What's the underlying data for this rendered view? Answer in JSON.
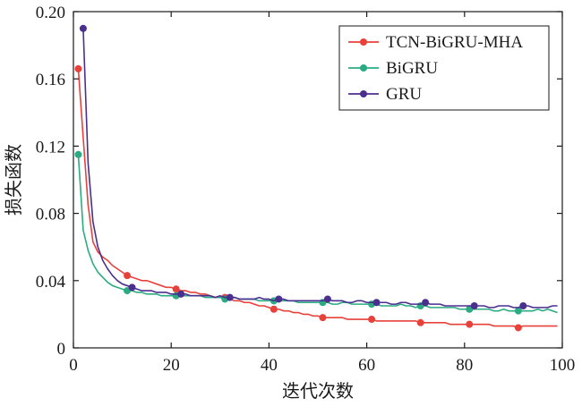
{
  "chart_data": {
    "type": "line",
    "xlabel": "迭代次数",
    "ylabel": "损失函数",
    "xlim": [
      0,
      100
    ],
    "ylim": [
      0,
      0.2
    ],
    "x_ticks": [
      0,
      20,
      40,
      60,
      80,
      100
    ],
    "x_tick_labels": [
      "0",
      "20",
      "40",
      "60",
      "80",
      "100"
    ],
    "y_ticks": [
      0,
      0.04,
      0.08,
      0.12,
      0.16,
      0.2
    ],
    "y_tick_labels": [
      "0",
      "0.04",
      "0.08",
      "0.12",
      "0.16",
      "0.20"
    ],
    "grid": false,
    "legend_position": "top-right",
    "series": [
      {
        "name": "TCN-BiGRU-MHA",
        "color": "#e8413a",
        "x": [
          1,
          2,
          3,
          4,
          5,
          6,
          7,
          8,
          9,
          10,
          11,
          12,
          13,
          14,
          15,
          16,
          17,
          18,
          19,
          20,
          21,
          22,
          23,
          24,
          25,
          26,
          27,
          28,
          29,
          30,
          31,
          32,
          33,
          34,
          35,
          36,
          37,
          38,
          39,
          40,
          41,
          42,
          43,
          44,
          45,
          46,
          47,
          48,
          49,
          50,
          51,
          52,
          53,
          54,
          55,
          56,
          57,
          58,
          59,
          60,
          61,
          62,
          63,
          64,
          65,
          66,
          67,
          68,
          69,
          70,
          71,
          72,
          73,
          74,
          75,
          76,
          77,
          78,
          79,
          80,
          81,
          82,
          83,
          84,
          85,
          86,
          87,
          88,
          89,
          90,
          91,
          92,
          93,
          94,
          95,
          96,
          97,
          98,
          99
        ],
        "y": [
          0.166,
          0.125,
          0.085,
          0.063,
          0.057,
          0.054,
          0.052,
          0.049,
          0.047,
          0.045,
          0.043,
          0.042,
          0.041,
          0.04,
          0.04,
          0.039,
          0.038,
          0.037,
          0.036,
          0.036,
          0.035,
          0.034,
          0.034,
          0.033,
          0.033,
          0.032,
          0.032,
          0.031,
          0.03,
          0.03,
          0.03,
          0.029,
          0.028,
          0.028,
          0.027,
          0.027,
          0.026,
          0.025,
          0.025,
          0.024,
          0.023,
          0.023,
          0.022,
          0.022,
          0.021,
          0.021,
          0.02,
          0.02,
          0.019,
          0.019,
          0.018,
          0.018,
          0.018,
          0.018,
          0.018,
          0.017,
          0.017,
          0.017,
          0.017,
          0.017,
          0.017,
          0.016,
          0.016,
          0.016,
          0.016,
          0.016,
          0.016,
          0.016,
          0.016,
          0.016,
          0.015,
          0.015,
          0.015,
          0.015,
          0.015,
          0.015,
          0.014,
          0.014,
          0.014,
          0.014,
          0.014,
          0.014,
          0.014,
          0.014,
          0.014,
          0.013,
          0.013,
          0.013,
          0.013,
          0.013,
          0.012,
          0.013,
          0.013,
          0.013,
          0.013,
          0.013,
          0.013,
          0.013,
          0.013
        ],
        "marker_x": [
          1,
          11,
          21,
          31,
          41,
          51,
          61,
          71,
          81,
          91
        ],
        "marker_y": [
          0.166,
          0.043,
          0.035,
          0.03,
          0.023,
          0.018,
          0.017,
          0.015,
          0.014,
          0.012
        ]
      },
      {
        "name": "BiGRU",
        "color": "#2bab82",
        "x": [
          1,
          2,
          3,
          4,
          5,
          6,
          7,
          8,
          9,
          10,
          11,
          12,
          13,
          14,
          15,
          16,
          17,
          18,
          19,
          20,
          21,
          22,
          23,
          24,
          25,
          26,
          27,
          28,
          29,
          30,
          31,
          32,
          33,
          34,
          35,
          36,
          37,
          38,
          39,
          40,
          41,
          42,
          43,
          44,
          45,
          46,
          47,
          48,
          49,
          50,
          51,
          52,
          53,
          54,
          55,
          56,
          57,
          58,
          59,
          60,
          61,
          62,
          63,
          64,
          65,
          66,
          67,
          68,
          69,
          70,
          71,
          72,
          73,
          74,
          75,
          76,
          77,
          78,
          79,
          80,
          81,
          82,
          83,
          84,
          85,
          86,
          87,
          88,
          89,
          90,
          91,
          92,
          93,
          94,
          95,
          96,
          97,
          98,
          99
        ],
        "y": [
          0.115,
          0.07,
          0.058,
          0.05,
          0.045,
          0.042,
          0.039,
          0.037,
          0.036,
          0.035,
          0.034,
          0.034,
          0.033,
          0.033,
          0.032,
          0.032,
          0.032,
          0.031,
          0.031,
          0.031,
          0.031,
          0.031,
          0.031,
          0.031,
          0.031,
          0.031,
          0.03,
          0.03,
          0.03,
          0.03,
          0.029,
          0.029,
          0.03,
          0.029,
          0.029,
          0.029,
          0.029,
          0.028,
          0.028,
          0.028,
          0.028,
          0.028,
          0.028,
          0.028,
          0.028,
          0.027,
          0.027,
          0.027,
          0.027,
          0.027,
          0.027,
          0.027,
          0.026,
          0.026,
          0.027,
          0.027,
          0.026,
          0.026,
          0.026,
          0.026,
          0.026,
          0.026,
          0.025,
          0.025,
          0.025,
          0.025,
          0.026,
          0.025,
          0.025,
          0.024,
          0.025,
          0.025,
          0.024,
          0.024,
          0.024,
          0.024,
          0.024,
          0.024,
          0.023,
          0.023,
          0.023,
          0.023,
          0.023,
          0.023,
          0.023,
          0.022,
          0.022,
          0.023,
          0.022,
          0.022,
          0.022,
          0.022,
          0.022,
          0.022,
          0.023,
          0.022,
          0.023,
          0.022,
          0.021
        ],
        "marker_x": [
          1,
          11,
          21,
          31,
          41,
          51,
          61,
          71,
          81,
          91
        ],
        "marker_y": [
          0.115,
          0.034,
          0.031,
          0.029,
          0.028,
          0.027,
          0.026,
          0.025,
          0.023,
          0.022
        ]
      },
      {
        "name": "GRU",
        "color": "#4b2f8f",
        "x": [
          2,
          3,
          4,
          5,
          6,
          7,
          8,
          9,
          10,
          11,
          12,
          13,
          14,
          15,
          16,
          17,
          18,
          19,
          20,
          21,
          22,
          23,
          24,
          25,
          26,
          27,
          28,
          29,
          30,
          31,
          32,
          33,
          34,
          35,
          36,
          37,
          38,
          39,
          40,
          41,
          42,
          43,
          44,
          45,
          46,
          47,
          48,
          49,
          50,
          51,
          52,
          53,
          54,
          55,
          56,
          57,
          58,
          59,
          60,
          61,
          62,
          63,
          64,
          65,
          66,
          67,
          68,
          69,
          70,
          71,
          72,
          73,
          74,
          75,
          76,
          77,
          78,
          79,
          80,
          81,
          82,
          83,
          84,
          85,
          86,
          87,
          88,
          89,
          90,
          91,
          92,
          93,
          94,
          95,
          96,
          97,
          98,
          99
        ],
        "y": [
          0.19,
          0.11,
          0.075,
          0.06,
          0.052,
          0.047,
          0.043,
          0.04,
          0.038,
          0.037,
          0.036,
          0.035,
          0.034,
          0.034,
          0.034,
          0.033,
          0.033,
          0.033,
          0.032,
          0.032,
          0.032,
          0.032,
          0.031,
          0.031,
          0.031,
          0.031,
          0.031,
          0.03,
          0.031,
          0.03,
          0.03,
          0.03,
          0.029,
          0.029,
          0.029,
          0.029,
          0.03,
          0.029,
          0.029,
          0.028,
          0.029,
          0.029,
          0.028,
          0.028,
          0.028,
          0.028,
          0.028,
          0.028,
          0.028,
          0.028,
          0.029,
          0.028,
          0.028,
          0.028,
          0.027,
          0.027,
          0.028,
          0.028,
          0.027,
          0.027,
          0.027,
          0.027,
          0.027,
          0.026,
          0.026,
          0.027,
          0.027,
          0.026,
          0.026,
          0.026,
          0.027,
          0.026,
          0.026,
          0.026,
          0.025,
          0.025,
          0.025,
          0.025,
          0.025,
          0.025,
          0.025,
          0.025,
          0.025,
          0.024,
          0.024,
          0.025,
          0.025,
          0.025,
          0.024,
          0.024,
          0.025,
          0.025,
          0.024,
          0.024,
          0.024,
          0.024,
          0.025,
          0.025
        ],
        "marker_x": [
          2,
          12,
          22,
          32,
          42,
          52,
          62,
          72,
          82,
          92
        ],
        "marker_y": [
          0.19,
          0.036,
          0.032,
          0.03,
          0.029,
          0.029,
          0.027,
          0.027,
          0.025,
          0.025
        ]
      }
    ]
  }
}
